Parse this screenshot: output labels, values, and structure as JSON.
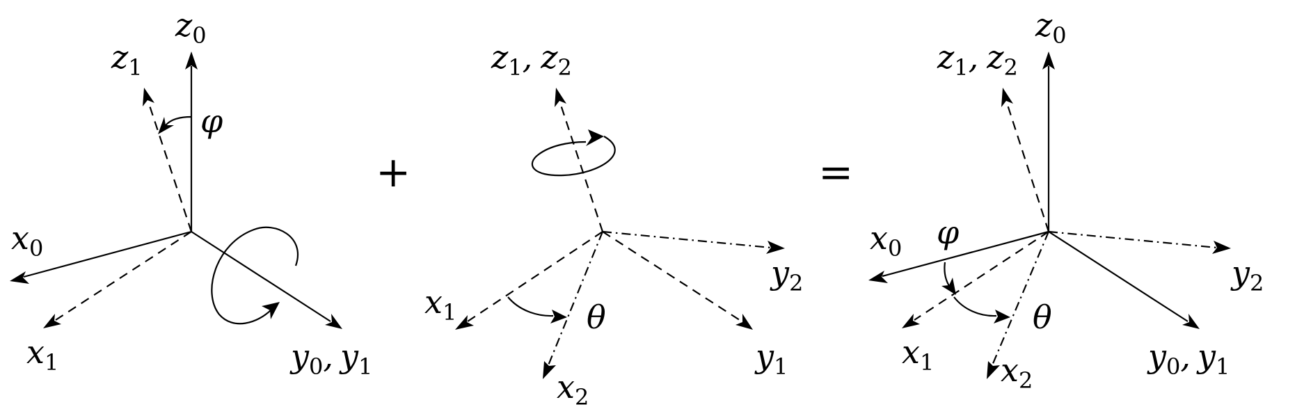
{
  "operators": {
    "plus": "+",
    "equals": "="
  },
  "panel1": {
    "z0": {
      "base": "z",
      "sub": "0"
    },
    "z1": {
      "base": "z",
      "sub": "1"
    },
    "x0": {
      "base": "x",
      "sub": "0"
    },
    "x1": {
      "base": "x",
      "sub": "1"
    },
    "y0y1": {
      "a_base": "y",
      "a_sub": "0",
      "sep": ",",
      "b_base": "y",
      "b_sub": "1"
    },
    "angle": "φ"
  },
  "panel2": {
    "z1z2": {
      "a_base": "z",
      "a_sub": "1",
      "sep": ",",
      "b_base": "z",
      "b_sub": "2"
    },
    "x1": {
      "base": "x",
      "sub": "1"
    },
    "x2": {
      "base": "x",
      "sub": "2"
    },
    "y1": {
      "base": "y",
      "sub": "1"
    },
    "y2": {
      "base": "y",
      "sub": "2"
    },
    "angle": "θ"
  },
  "panel3": {
    "z0": {
      "base": "z",
      "sub": "0"
    },
    "z1z2": {
      "a_base": "z",
      "a_sub": "1",
      "sep": ",",
      "b_base": "z",
      "b_sub": "2"
    },
    "x0": {
      "base": "x",
      "sub": "0"
    },
    "x1": {
      "base": "x",
      "sub": "1"
    },
    "x2": {
      "base": "x",
      "sub": "2"
    },
    "y2": {
      "base": "y",
      "sub": "2"
    },
    "y0y1": {
      "a_base": "y",
      "a_sub": "0",
      "sep": ",",
      "b_base": "y",
      "b_sub": "1"
    },
    "angle_phi": "φ",
    "angle_theta": "θ"
  }
}
